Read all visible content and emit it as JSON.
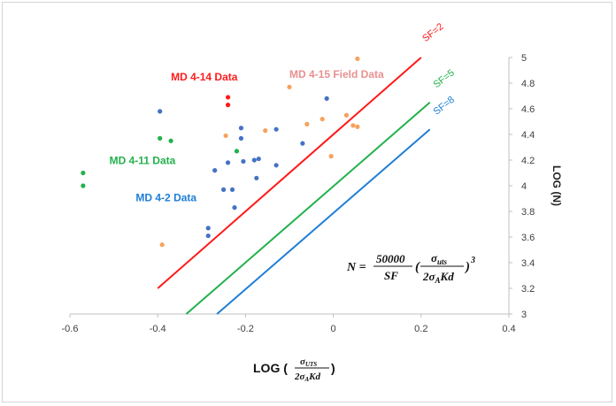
{
  "chart_data": {
    "type": "scatter",
    "title": "",
    "xlabel_prefix": "LOG (",
    "xlabel_num": "σ",
    "xlabel_num_sub": "UTS",
    "xlabel_den": "2σ",
    "xlabel_den_sub": "A",
    "xlabel_den_tail": "Kd",
    "xlabel_suffix": ")",
    "ylabel": "LOG (N)",
    "xlim": [
      -0.6,
      0.4
    ],
    "ylim": [
      3,
      5
    ],
    "x_ticks": [
      "-0.6",
      "-0.4",
      "-0.2",
      "0",
      "0.2",
      "0.4"
    ],
    "y_ticks": [
      "3",
      "3.2",
      "3.4",
      "3.6",
      "3.8",
      "4",
      "4.2",
      "4.4",
      "4.6",
      "4.8",
      "5"
    ],
    "grid": false,
    "equation": {
      "lhs": "N =",
      "num": "50000",
      "den": "SF",
      "frac_num": "σ",
      "frac_num_sub": "uts",
      "frac_den": "2σ",
      "frac_den_sub": "A",
      "frac_den_tail": "Kd",
      "power": "3"
    },
    "lines": [
      {
        "name": "SF=2",
        "color": "#ff1a1a",
        "x": [
          -0.4,
          0.2
        ],
        "y": [
          3.2,
          5.0
        ]
      },
      {
        "name": "SF=5",
        "color": "#22b14c",
        "x": [
          -0.335,
          0.22
        ],
        "y": [
          3.0,
          4.65
        ]
      },
      {
        "name": "SF=8",
        "color": "#1f7ed6",
        "x": [
          -0.265,
          0.22
        ],
        "y": [
          3.0,
          4.44
        ]
      }
    ],
    "series": [
      {
        "name": "MD 4-14 Data",
        "color": "#ff1a1a",
        "label_at": [
          -0.37,
          4.82
        ],
        "points": [
          [
            -0.24,
            4.69
          ],
          [
            -0.24,
            4.63
          ]
        ]
      },
      {
        "name": "MD 4-15 Field Data",
        "color": "#f6a25c",
        "label_color": "#e89090",
        "label_at": [
          -0.1,
          4.84
        ],
        "points": [
          [
            -0.39,
            3.54
          ],
          [
            -0.245,
            4.39
          ],
          [
            -0.155,
            4.43
          ],
          [
            -0.1,
            4.77
          ],
          [
            -0.06,
            4.48
          ],
          [
            -0.025,
            4.52
          ],
          [
            -0.005,
            4.23
          ],
          [
            0.03,
            4.55
          ],
          [
            0.045,
            4.47
          ],
          [
            0.055,
            4.46
          ],
          [
            0.055,
            4.99
          ]
        ]
      },
      {
        "name": "MD 4-11 Data",
        "color": "#22b14c",
        "label_at": [
          -0.51,
          4.17
        ],
        "points": [
          [
            -0.57,
            4.1
          ],
          [
            -0.57,
            4.0
          ],
          [
            -0.395,
            4.37
          ],
          [
            -0.37,
            4.35
          ],
          [
            -0.22,
            4.27
          ]
        ]
      },
      {
        "name": "MD 4-2 Data",
        "color": "#4472c4",
        "label_color": "#1f7ed6",
        "label_at": [
          -0.45,
          3.88
        ],
        "points": [
          [
            -0.395,
            4.58
          ],
          [
            -0.285,
            3.67
          ],
          [
            -0.285,
            3.61
          ],
          [
            -0.27,
            4.12
          ],
          [
            -0.25,
            3.97
          ],
          [
            -0.24,
            4.18
          ],
          [
            -0.23,
            3.97
          ],
          [
            -0.225,
            3.83
          ],
          [
            -0.21,
            4.45
          ],
          [
            -0.21,
            4.37
          ],
          [
            -0.205,
            4.19
          ],
          [
            -0.18,
            4.2
          ],
          [
            -0.175,
            4.06
          ],
          [
            -0.17,
            4.21
          ],
          [
            -0.13,
            4.44
          ],
          [
            -0.13,
            4.16
          ],
          [
            -0.07,
            4.33
          ],
          [
            -0.015,
            4.68
          ]
        ]
      }
    ],
    "sf_labels": [
      {
        "text": "SF=2",
        "color": "#ff1a1a",
        "at": [
          0.21,
          5.12
        ]
      },
      {
        "text": "SF=5",
        "color": "#22b14c",
        "at": [
          0.235,
          4.76
        ]
      },
      {
        "text": "SF=8",
        "color": "#1f7ed6",
        "at": [
          0.235,
          4.55
        ]
      }
    ]
  }
}
